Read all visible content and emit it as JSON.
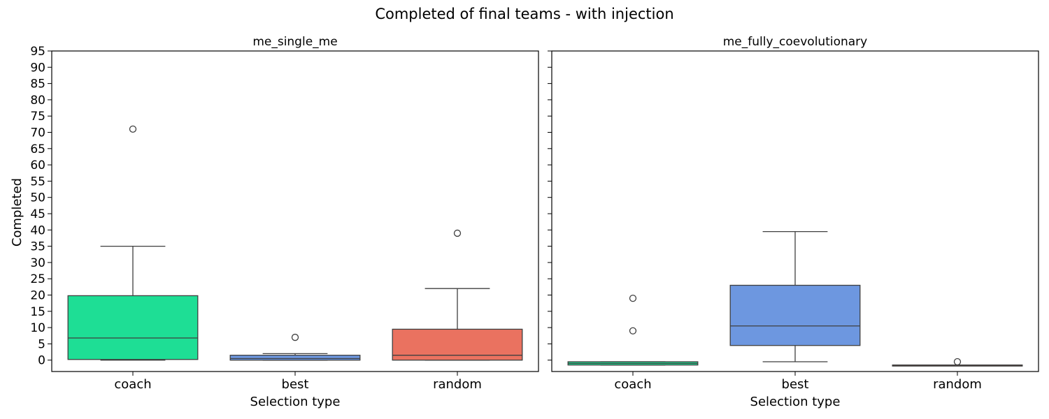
{
  "figure_title": "Completed of final teams - with injection",
  "y_label": "Completed",
  "chart_data": [
    {
      "type": "box",
      "title": "me_single_me",
      "xlabel": "Selection type",
      "ylabel": "Completed",
      "categories": [
        "coach",
        "best",
        "random"
      ],
      "ylim": [
        -3.5,
        95
      ],
      "yticks": [
        0,
        5,
        10,
        15,
        20,
        25,
        30,
        35,
        40,
        45,
        50,
        55,
        60,
        65,
        70,
        75,
        80,
        85,
        90,
        95
      ],
      "show_tick_labels": true,
      "boxes": [
        {
          "category": "coach",
          "color": "#1ede95",
          "whisker_low": 0,
          "q1": 0.2,
          "median": 6.8,
          "q3": 19.8,
          "whisker_high": 35,
          "outliers": [
            71
          ]
        },
        {
          "category": "best",
          "color": "#6d97e0",
          "whisker_low": 0,
          "q1": 0,
          "median": 0.5,
          "q3": 1.5,
          "whisker_high": 2,
          "outliers": [
            7
          ]
        },
        {
          "category": "random",
          "color": "#ea7260",
          "whisker_low": 0,
          "q1": 0,
          "median": 1.5,
          "q3": 9.5,
          "whisker_high": 22,
          "outliers": [
            39
          ]
        }
      ]
    },
    {
      "type": "box",
      "title": "me_fully_coevolutionary",
      "xlabel": "Selection type",
      "ylabel": "",
      "categories": [
        "coach",
        "best",
        "random"
      ],
      "ylim": [
        -3.5,
        95
      ],
      "yticks": [
        0,
        5,
        10,
        15,
        20,
        25,
        30,
        35,
        40,
        45,
        50,
        55,
        60,
        65,
        70,
        75,
        80,
        85,
        90,
        95
      ],
      "show_tick_labels": false,
      "boxes": [
        {
          "category": "coach",
          "color": "#1ede95",
          "whisker_low": -1.5,
          "q1": -1.5,
          "median": -1,
          "q3": -0.5,
          "whisker_high": -0.5,
          "outliers": [
            19,
            9
          ]
        },
        {
          "category": "best",
          "color": "#6d97e0",
          "whisker_low": -0.5,
          "q1": 4.5,
          "median": 10.5,
          "q3": 23,
          "whisker_high": 39.5,
          "outliers": []
        },
        {
          "category": "random",
          "color": "#ea7260",
          "whisker_low": -1.5,
          "q1": -1.5,
          "median": -1.5,
          "q3": -1.5,
          "whisker_high": -1.5,
          "outliers": [
            -0.5
          ]
        }
      ]
    }
  ]
}
